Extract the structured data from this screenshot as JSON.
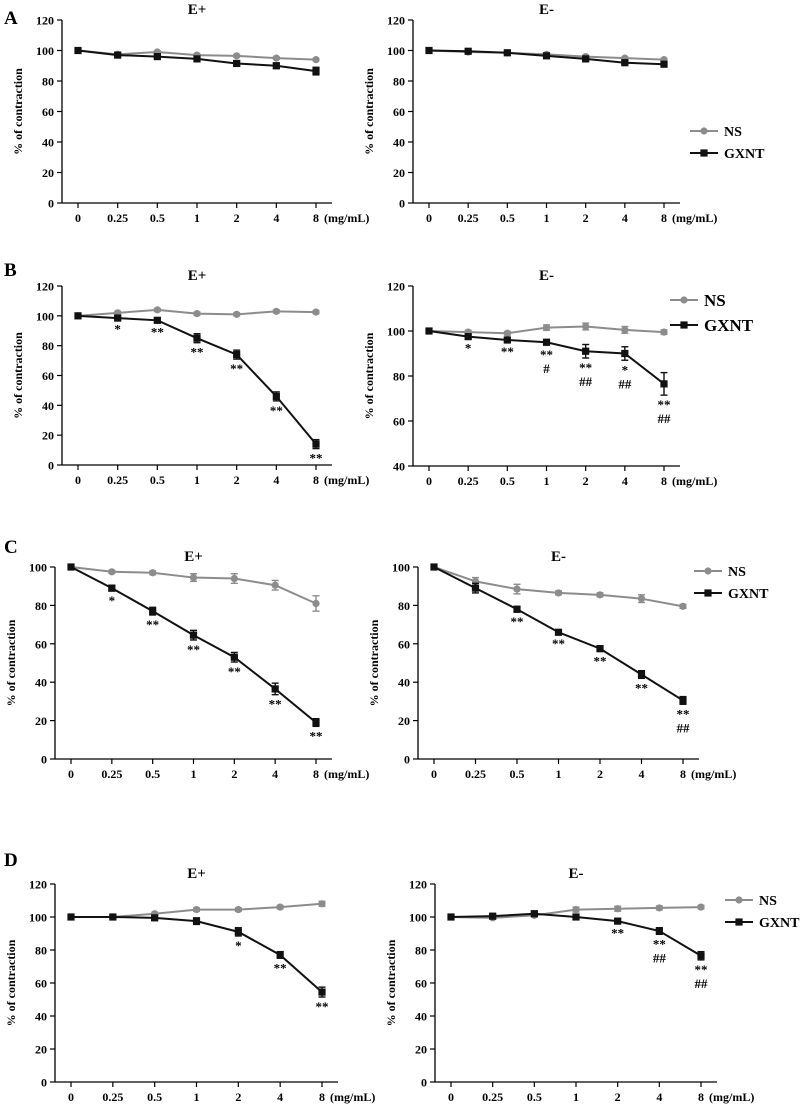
{
  "figure": {
    "ylabel": "% of contraction",
    "unit_label": "(mg/mL)",
    "categories": [
      "0",
      "0.25",
      "0.5",
      "1",
      "2",
      "4",
      "8"
    ],
    "colors": {
      "NS": "#8c8c8c",
      "GXNT": "#111111"
    }
  },
  "chart_data": [
    {
      "panel": "A",
      "title": "E+",
      "type": "line",
      "categories": [
        "0",
        "0.25",
        "0.5",
        "1",
        "2",
        "4",
        "8"
      ],
      "xlabel": "(mg/mL)",
      "ylabel": "% of contraction",
      "ylim": [
        0,
        120
      ],
      "yticks": [
        0,
        20,
        40,
        60,
        80,
        100,
        120
      ],
      "legend": false,
      "series": [
        {
          "name": "NS",
          "values": [
            100,
            97.5,
            99,
            97,
            96.5,
            95,
            94
          ],
          "err": [
            0.5,
            0.8,
            0.8,
            0.8,
            0.8,
            0.8,
            0.8
          ]
        },
        {
          "name": "GXNT",
          "values": [
            100,
            97,
            96,
            94.5,
            91.5,
            90,
            86.5
          ],
          "err": [
            0.5,
            0.8,
            1,
            1,
            1.6,
            1.8,
            2.5
          ]
        }
      ],
      "annotations": []
    },
    {
      "panel": "A",
      "title": "E-",
      "type": "line",
      "categories": [
        "0",
        "0.25",
        "0.5",
        "1",
        "2",
        "4",
        "8"
      ],
      "xlabel": "(mg/mL)",
      "ylabel": "% of contraction",
      "ylim": [
        0,
        120
      ],
      "yticks": [
        0,
        20,
        40,
        60,
        80,
        100,
        120
      ],
      "legend": true,
      "series": [
        {
          "name": "NS",
          "values": [
            100,
            99,
            98.5,
            97.5,
            96,
            95,
            94
          ],
          "err": [
            0.5,
            0.8,
            0.8,
            0.8,
            0.8,
            0.8,
            0.8
          ]
        },
        {
          "name": "GXNT",
          "values": [
            100,
            99.5,
            98.5,
            96.5,
            94.5,
            92,
            91
          ],
          "err": [
            0.5,
            0.8,
            0.8,
            0.8,
            0.8,
            1,
            1
          ]
        }
      ],
      "annotations": []
    },
    {
      "panel": "B",
      "title": "E+",
      "type": "line",
      "categories": [
        "0",
        "0.25",
        "0.5",
        "1",
        "2",
        "4",
        "8"
      ],
      "xlabel": "(mg/mL)",
      "ylabel": "% of contraction",
      "ylim": [
        0,
        120
      ],
      "yticks": [
        0,
        20,
        40,
        60,
        80,
        100,
        120
      ],
      "legend": false,
      "series": [
        {
          "name": "NS",
          "values": [
            100,
            102,
            104,
            101.5,
            101,
            103,
            102.5
          ],
          "err": [
            0.5,
            1,
            1,
            1,
            1,
            1,
            1
          ]
        },
        {
          "name": "GXNT",
          "values": [
            100,
            98.5,
            97,
            85,
            74,
            46,
            14
          ],
          "err": [
            0.5,
            1,
            1.5,
            3,
            3,
            3,
            3
          ]
        }
      ],
      "annotations": [
        {
          "index": 1,
          "text": "*"
        },
        {
          "index": 2,
          "text": "**"
        },
        {
          "index": 3,
          "text": "**"
        },
        {
          "index": 4,
          "text": "**"
        },
        {
          "index": 5,
          "text": "**"
        },
        {
          "index": 6,
          "text": "**"
        }
      ]
    },
    {
      "panel": "B",
      "title": "E-",
      "type": "line",
      "categories": [
        "0",
        "0.25",
        "0.5",
        "1",
        "2",
        "4",
        "8"
      ],
      "xlabel": "(mg/mL)",
      "ylabel": "% of contraction",
      "ylim": [
        40,
        120
      ],
      "yticks": [
        40,
        60,
        80,
        100,
        120
      ],
      "legend": true,
      "series": [
        {
          "name": "NS",
          "values": [
            100,
            99.5,
            99,
            101.5,
            102,
            100.5,
            99.5
          ],
          "err": [
            0.5,
            0.8,
            0.8,
            1.2,
            1.5,
            1.5,
            1
          ]
        },
        {
          "name": "GXNT",
          "values": [
            100,
            97.5,
            96,
            95,
            91,
            90,
            76.5
          ],
          "err": [
            0.5,
            0.8,
            0.8,
            1.2,
            3,
            3,
            5
          ]
        }
      ],
      "annotations": [
        {
          "index": 1,
          "text": "*"
        },
        {
          "index": 2,
          "text": "**"
        },
        {
          "index": 3,
          "text": "**\n#"
        },
        {
          "index": 4,
          "text": "**\n##"
        },
        {
          "index": 5,
          "text": "*\n##"
        },
        {
          "index": 6,
          "text": "**\n##"
        }
      ]
    },
    {
      "panel": "C",
      "title": "E+",
      "type": "line",
      "categories": [
        "0",
        "0.25",
        "0.5",
        "1",
        "2",
        "4",
        "8"
      ],
      "xlabel": "(mg/mL)",
      "ylabel": "% of contraction",
      "ylim": [
        0,
        100
      ],
      "yticks": [
        0,
        20,
        40,
        60,
        80,
        100
      ],
      "legend": false,
      "series": [
        {
          "name": "NS",
          "values": [
            100,
            97.5,
            97,
            94.5,
            94,
            90.5,
            81
          ],
          "err": [
            0.5,
            0.8,
            1,
            2,
            2.5,
            2.5,
            4
          ]
        },
        {
          "name": "GXNT",
          "values": [
            100,
            89,
            77,
            64.5,
            53,
            36.5,
            19
          ],
          "err": [
            0.5,
            1.5,
            2,
            2.5,
            2.5,
            3,
            2
          ]
        }
      ],
      "annotations": [
        {
          "index": 1,
          "text": "*"
        },
        {
          "index": 2,
          "text": "**"
        },
        {
          "index": 3,
          "text": "**"
        },
        {
          "index": 4,
          "text": "**"
        },
        {
          "index": 5,
          "text": "**"
        },
        {
          "index": 6,
          "text": "**"
        }
      ]
    },
    {
      "panel": "C",
      "title": "E-",
      "type": "line",
      "categories": [
        "0",
        "0.25",
        "0.5",
        "1",
        "2",
        "4",
        "8"
      ],
      "xlabel": "(mg/mL)",
      "ylabel": "% of contraction",
      "ylim": [
        0,
        100
      ],
      "yticks": [
        0,
        20,
        40,
        60,
        80,
        100
      ],
      "legend": true,
      "series": [
        {
          "name": "NS",
          "values": [
            100,
            92.5,
            88.5,
            86.5,
            85.5,
            83.5,
            79.5
          ],
          "err": [
            0.5,
            2,
            2.5,
            1,
            1,
            2,
            1
          ]
        },
        {
          "name": "GXNT",
          "values": [
            100,
            89,
            78,
            66,
            57.5,
            44,
            30.5
          ],
          "err": [
            0.5,
            2.5,
            1.5,
            1,
            1.5,
            2,
            2
          ]
        }
      ],
      "annotations": [
        {
          "index": 2,
          "text": "**"
        },
        {
          "index": 3,
          "text": "**"
        },
        {
          "index": 4,
          "text": "**"
        },
        {
          "index": 5,
          "text": "**"
        },
        {
          "index": 6,
          "text": "**\n##"
        }
      ]
    },
    {
      "panel": "D",
      "title": "E+",
      "type": "line",
      "categories": [
        "0",
        "0.25",
        "0.5",
        "1",
        "2",
        "4",
        "8"
      ],
      "xlabel": "(mg/mL)",
      "ylabel": "% of contraction",
      "ylim": [
        0,
        120
      ],
      "yticks": [
        0,
        20,
        40,
        60,
        80,
        100,
        120
      ],
      "legend": false,
      "series": [
        {
          "name": "NS",
          "values": [
            100,
            100,
            102,
            104.5,
            104.5,
            106,
            108
          ],
          "err": [
            0.5,
            0.8,
            0.8,
            1,
            1,
            1,
            1.5
          ]
        },
        {
          "name": "GXNT",
          "values": [
            100,
            100,
            99.5,
            97.5,
            91,
            77,
            54.5
          ],
          "err": [
            0.5,
            0.8,
            1,
            2,
            2.5,
            2,
            3
          ]
        }
      ],
      "annotations": [
        {
          "index": 4,
          "text": "*"
        },
        {
          "index": 5,
          "text": "**"
        },
        {
          "index": 6,
          "text": "**"
        }
      ]
    },
    {
      "panel": "D",
      "title": "E-",
      "type": "line",
      "categories": [
        "0",
        "0.25",
        "0.5",
        "1",
        "2",
        "4",
        "8"
      ],
      "xlabel": "(mg/mL)",
      "ylabel": "% of contraction",
      "ylim": [
        0,
        120
      ],
      "yticks": [
        0,
        20,
        40,
        60,
        80,
        100,
        120
      ],
      "legend": true,
      "series": [
        {
          "name": "NS",
          "values": [
            100,
            99.5,
            101,
            104.5,
            105,
            105.5,
            106
          ],
          "err": [
            0.5,
            0.8,
            1,
            1.5,
            1.5,
            1.2,
            1
          ]
        },
        {
          "name": "GXNT",
          "values": [
            100,
            100.5,
            102,
            100,
            97.5,
            91.5,
            76.5
          ],
          "err": [
            0.5,
            0.8,
            1,
            1.5,
            1.5,
            2,
            2.5
          ]
        }
      ],
      "annotations": [
        {
          "index": 4,
          "text": "**"
        },
        {
          "index": 5,
          "text": "**\n##"
        },
        {
          "index": 6,
          "text": "**\n##"
        }
      ]
    }
  ]
}
